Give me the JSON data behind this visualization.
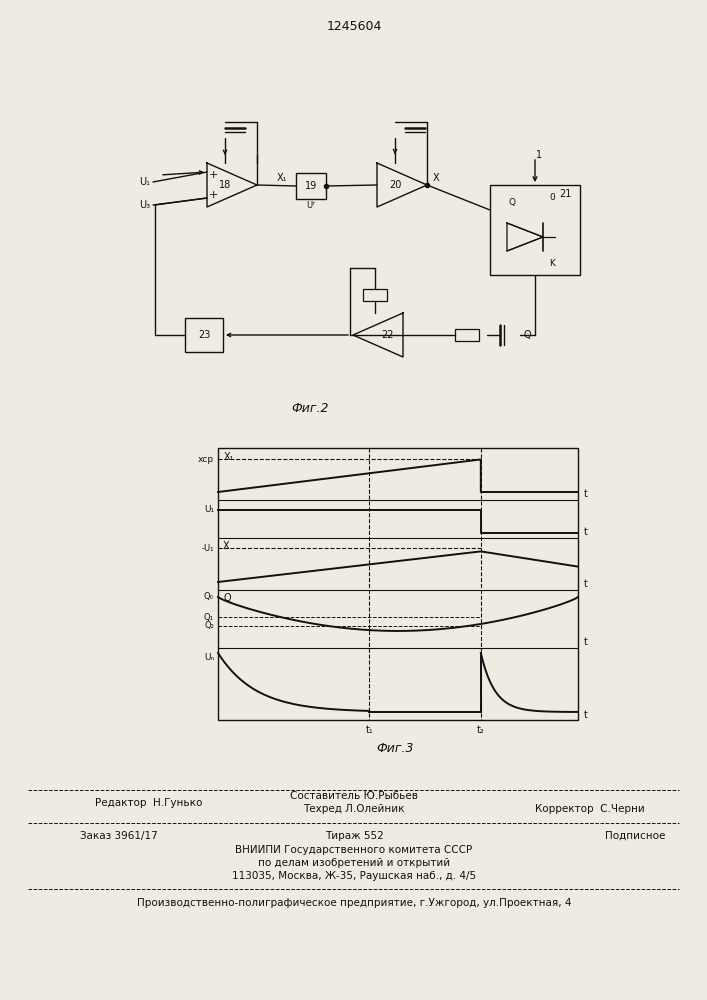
{
  "title_number": "1245604",
  "fig2_label": "Фиг.2",
  "fig3_label": "Фиг.3",
  "footer_line1_left": "Редактор  Н.Гунько",
  "footer_line1_center": "Составитель Ю.Рыбьев",
  "footer_line2_center": "Техред Л.Олейник",
  "footer_line2_right": "Корректор  С.Черни",
  "footer_line3_left": "Заказ 3961/17",
  "footer_line3_center": "Тираж 552",
  "footer_line3_right": "Подписное",
  "footer_line4": "ВНИИПИ Государственного комитета СССР",
  "footer_line5": "по делам изобретений и открытий",
  "footer_line6": "113035, Москва, Ж-35, Раушская наб., д. 4/5",
  "footer_line7": "Производственно-полиграфическое предприятие, г.Ужгород, ул.Проектная, 4",
  "bg_color": "#eeebe3"
}
